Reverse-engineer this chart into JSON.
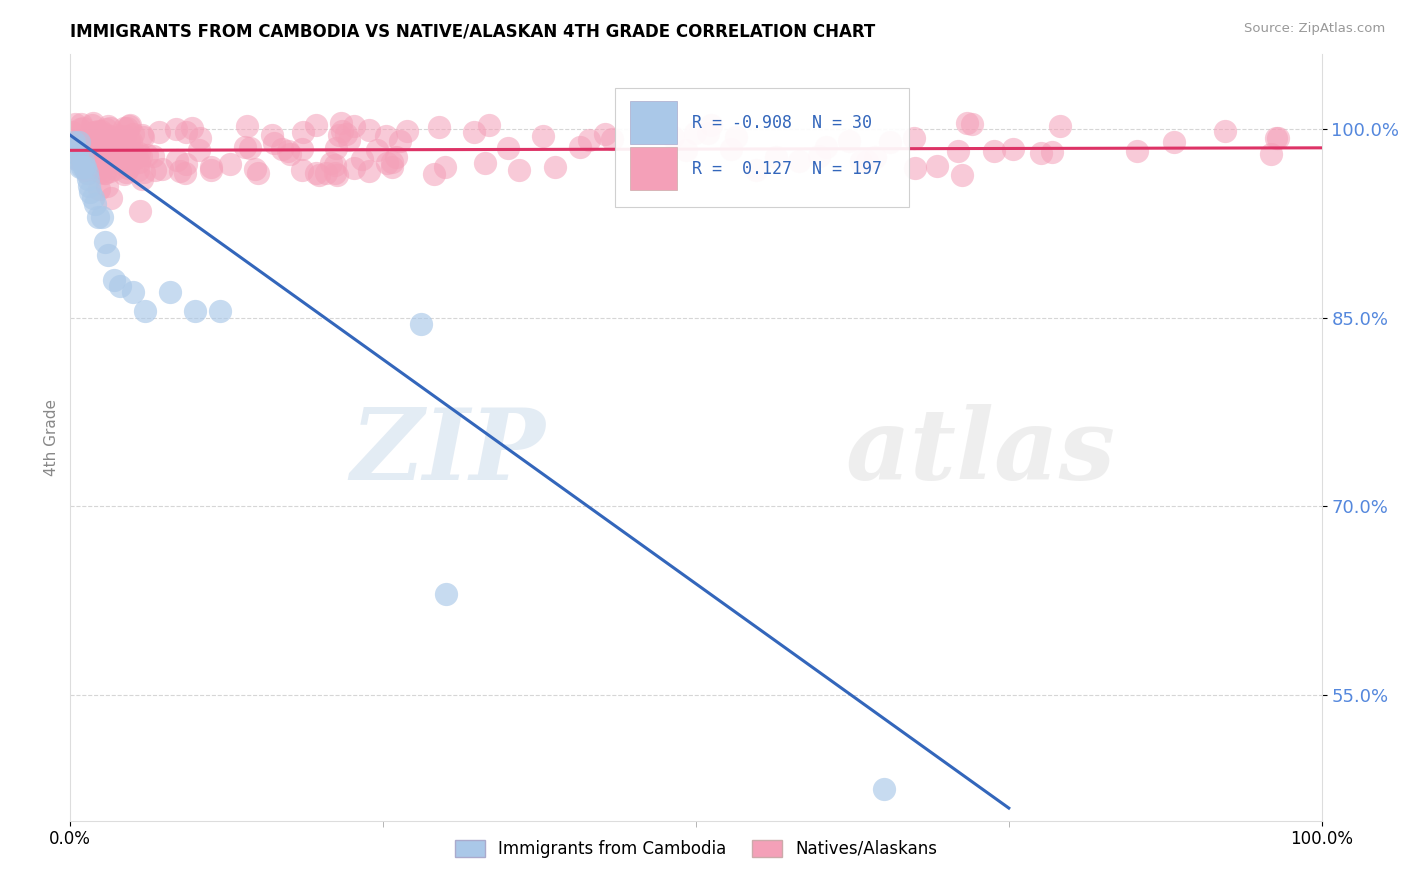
{
  "title": "IMMIGRANTS FROM CAMBODIA VS NATIVE/ALASKAN 4TH GRADE CORRELATION CHART",
  "source": "Source: ZipAtlas.com",
  "ylabel": "4th Grade",
  "xlim": [
    0.0,
    1.0
  ],
  "ylim": [
    0.45,
    1.06
  ],
  "yticks": [
    0.55,
    0.7,
    0.85,
    1.0
  ],
  "ytick_labels": [
    "55.0%",
    "70.0%",
    "85.0%",
    "100.0%"
  ],
  "xtick_labels": [
    "0.0%",
    "100.0%"
  ],
  "xticks": [
    0.0,
    1.0
  ],
  "blue_R": -0.908,
  "blue_N": 30,
  "pink_R": 0.127,
  "pink_N": 197,
  "blue_color": "#aac8e8",
  "pink_color": "#f4a0b8",
  "blue_line_color": "#3366bb",
  "pink_line_color": "#dd3366",
  "watermark_zip": "ZIP",
  "watermark_atlas": "atlas",
  "legend_label_blue": "Immigrants from Cambodia",
  "legend_label_pink": "Natives/Alaskans",
  "blue_scatter_x": [
    0.003,
    0.004,
    0.005,
    0.006,
    0.007,
    0.008,
    0.009,
    0.01,
    0.011,
    0.012,
    0.013,
    0.014,
    0.015,
    0.016,
    0.018,
    0.02,
    0.022,
    0.025,
    0.028,
    0.03,
    0.035,
    0.04,
    0.05,
    0.06,
    0.08,
    0.1,
    0.12,
    0.28,
    0.3,
    0.65
  ],
  "blue_scatter_y": [
    0.99,
    0.985,
    0.98,
    0.975,
    0.99,
    0.97,
    0.97,
    0.975,
    0.97,
    0.97,
    0.965,
    0.96,
    0.955,
    0.95,
    0.945,
    0.94,
    0.93,
    0.93,
    0.91,
    0.9,
    0.88,
    0.875,
    0.87,
    0.855,
    0.87,
    0.855,
    0.855,
    0.845,
    0.63,
    0.475
  ],
  "pink_line_y0": 0.983,
  "pink_line_y1": 0.985,
  "blue_line_x0": 0.0,
  "blue_line_y0": 0.995,
  "blue_line_x1": 0.75,
  "blue_line_y1": 0.46,
  "background_color": "#ffffff",
  "title_color": "#000000",
  "title_fontsize": 12,
  "axis_label_color": "#888888",
  "tick_color": "#5588dd",
  "grid_color": "#cccccc"
}
